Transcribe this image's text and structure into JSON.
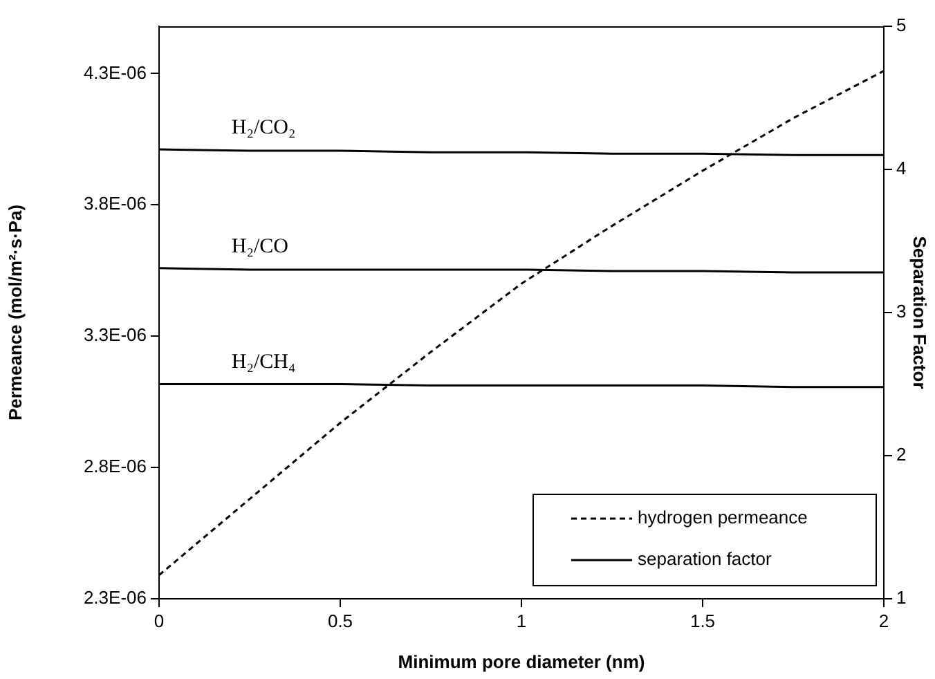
{
  "chart_data": {
    "type": "line",
    "xlabel": "Minimum pore diameter (nm)",
    "ylabel": "Permeance (mol/m²·s·Pa)",
    "y2label": "Separation Factor",
    "x": [
      0,
      0.25,
      0.5,
      0.75,
      1,
      1.25,
      1.5,
      1.75,
      2
    ],
    "series": [
      {
        "name": "hydrogen permeance",
        "color": "#000000",
        "line_style": "dashed",
        "values": [
          2.39e-06,
          2.68e-06,
          2.97e-06,
          3.24e-06,
          3.5e-06,
          3.72e-06,
          3.93e-06,
          4.13e-06,
          4.31e-06
        ]
      },
      {
        "name": "separation factor",
        "color": "#000000",
        "line_style": "solid",
        "axis": "y2",
        "values": [
          4.14,
          4.13,
          4.13,
          4.12,
          4.12,
          4.11,
          4.11,
          4.1,
          4.1
        ]
      },
      {
        "color": "#000000",
        "line_style": "solid",
        "axis": "y2",
        "values": [
          3.31,
          3.3,
          3.3,
          3.3,
          3.3,
          3.29,
          3.29,
          3.28,
          3.28
        ]
      },
      {
        "color": "#000000",
        "line_style": "solid",
        "axis": "y2",
        "values": [
          2.5,
          2.5,
          2.5,
          2.49,
          2.49,
          2.49,
          2.49,
          2.48,
          2.48
        ]
      }
    ],
    "annotations": [
      "H₂/CO₂",
      "H₂/CO",
      "H₂/CH₄"
    ],
    "xlim": [
      0,
      2
    ],
    "xticks": [
      0,
      0.5,
      1,
      1.5,
      2
    ],
    "ylim": [
      2.3e-06,
      4.48e-06
    ],
    "yticks": [
      {
        "value": 2.3e-06,
        "label": "2.3E-06"
      },
      {
        "value": 2.8e-06,
        "label": "2.8E-06"
      },
      {
        "value": 3.3e-06,
        "label": "3.3E-06"
      },
      {
        "value": 3.8e-06,
        "label": "3.8E-06"
      },
      {
        "value": 4.3e-06,
        "label": "4.3E-06"
      }
    ],
    "y2lim": [
      1,
      5
    ],
    "y2ticks": [
      1,
      2,
      3,
      4,
      5
    ],
    "grid": false,
    "legend": "bottom right",
    "marker": "none"
  }
}
